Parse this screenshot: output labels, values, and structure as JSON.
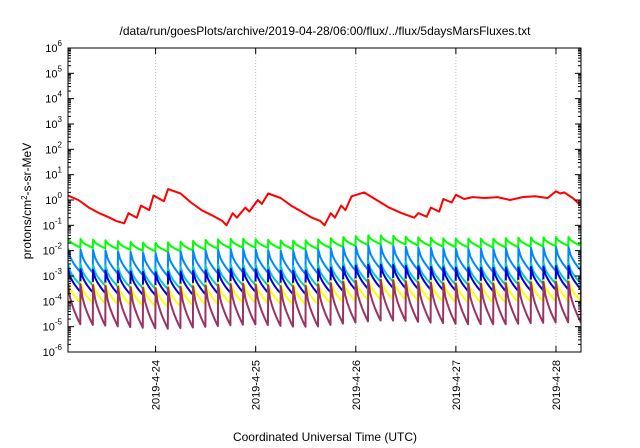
{
  "chart_data": {
    "type": "line",
    "title": "/data/run/goesPlots/archive/2019-04-28/06:00/flux/../flux/5daysMarsFluxes.txt",
    "xlabel": "Coordinated Universal Time (UTC)",
    "ylabel": {
      "before": "protons/cm",
      "sup": "2",
      "after": "-s-sr-MeV"
    },
    "y_scale": "log",
    "ylim": [
      1e-06,
      1000000.0
    ],
    "y_ticks": [
      {
        "base": "10",
        "exp": "-6",
        "value": 1e-06
      },
      {
        "base": "10",
        "exp": "-5",
        "value": 1e-05
      },
      {
        "base": "10",
        "exp": "-4",
        "value": 0.0001
      },
      {
        "base": "10",
        "exp": "-3",
        "value": 0.001
      },
      {
        "base": "10",
        "exp": "-2",
        "value": 0.01
      },
      {
        "base": "10",
        "exp": "-1",
        "value": 0.1
      },
      {
        "base": "10",
        "exp": "0",
        "value": 1
      },
      {
        "base": "10",
        "exp": "1",
        "value": 10
      },
      {
        "base": "10",
        "exp": "2",
        "value": 100
      },
      {
        "base": "10",
        "exp": "3",
        "value": 1000
      },
      {
        "base": "10",
        "exp": "4",
        "value": 10000
      },
      {
        "base": "10",
        "exp": "5",
        "value": 100000
      },
      {
        "base": "10",
        "exp": "6",
        "value": 1000000
      }
    ],
    "xlim": [
      "2019-04-23T03:00",
      "2019-04-28T06:00"
    ],
    "x_ticks": [
      {
        "label": "2019-4-24",
        "value": "2019-04-24T00:00"
      },
      {
        "label": "2019-4-25",
        "value": "2019-04-25T00:00"
      },
      {
        "label": "2019-4-26",
        "value": "2019-04-26T00:00"
      },
      {
        "label": "2019-4-27",
        "value": "2019-04-27T00:00"
      },
      {
        "label": "2019-4-28",
        "value": "2019-04-28T00:00"
      }
    ],
    "grid": {
      "x": true,
      "y": false
    },
    "legend": "none",
    "series": [
      {
        "color": "#ff0000",
        "x": [
          "2019-04-23T03:00",
          "2019-04-23T05:30",
          "2019-04-23T08:00",
          "2019-04-23T10:30",
          "2019-04-23T13:00",
          "2019-04-23T14:30",
          "2019-04-23T16:30",
          "2019-04-23T17:30",
          "2019-04-23T19:30",
          "2019-04-23T20:30",
          "2019-04-23T22:30",
          "2019-04-23T23:30",
          "2019-04-24T02:00",
          "2019-04-24T03:00",
          "2019-04-24T06:00",
          "2019-04-24T08:30",
          "2019-04-24T11:00",
          "2019-04-24T13:30",
          "2019-04-24T16:00",
          "2019-04-24T17:00",
          "2019-04-24T18:30",
          "2019-04-24T19:30",
          "2019-04-24T21:30",
          "2019-04-24T22:30",
          "2019-04-25T00:30",
          "2019-04-25T01:30",
          "2019-04-25T03:00",
          "2019-04-25T06:00",
          "2019-04-25T08:30",
          "2019-04-25T11:00",
          "2019-04-25T13:30",
          "2019-04-25T15:30",
          "2019-04-25T16:30",
          "2019-04-25T18:00",
          "2019-04-25T19:00",
          "2019-04-25T20:30",
          "2019-04-25T21:30",
          "2019-04-25T23:00",
          "2019-04-26T02:00",
          "2019-04-26T05:00",
          "2019-04-26T08:00",
          "2019-04-26T11:00",
          "2019-04-26T14:00",
          "2019-04-26T15:00",
          "2019-04-26T17:00",
          "2019-04-26T18:00",
          "2019-04-26T20:00",
          "2019-04-26T21:00",
          "2019-04-26T23:00",
          "2019-04-27T00:00",
          "2019-04-27T02:00",
          "2019-04-27T04:00",
          "2019-04-27T07:00",
          "2019-04-27T10:00",
          "2019-04-27T13:00",
          "2019-04-27T16:00",
          "2019-04-27T19:00",
          "2019-04-27T22:00",
          "2019-04-28T00:00",
          "2019-04-28T01:00",
          "2019-04-28T02:00",
          "2019-04-28T04:00",
          "2019-04-28T06:00"
        ],
        "values": [
          1.5,
          1.0,
          0.5,
          0.3,
          0.2,
          0.15,
          0.12,
          0.3,
          0.2,
          0.6,
          0.4,
          1.5,
          0.9,
          2.7,
          1.8,
          0.8,
          0.4,
          0.25,
          0.15,
          0.1,
          0.3,
          0.2,
          0.5,
          0.35,
          1.0,
          0.7,
          1.8,
          1.2,
          0.6,
          0.35,
          0.2,
          0.15,
          0.1,
          0.3,
          0.2,
          0.6,
          0.4,
          1.4,
          2.0,
          1.0,
          0.5,
          0.3,
          0.2,
          0.3,
          0.22,
          0.5,
          0.35,
          1.1,
          0.8,
          1.6,
          1.1,
          1.3,
          1.2,
          1.3,
          1.0,
          1.3,
          1.4,
          1.2,
          2.2,
          1.8,
          2.0,
          1.2,
          0.6
        ]
      },
      {
        "color": "#00ff00",
        "base_values": [
          0.03,
          0.028,
          0.025,
          0.022,
          0.02,
          0.022,
          0.025,
          0.028,
          0.03,
          0.028,
          0.025,
          0.025,
          0.03,
          0.035,
          0.04,
          0.04,
          0.035,
          0.032,
          0.03,
          0.03,
          0.03,
          0.032,
          0.033,
          0.035,
          0.035
        ],
        "min_ratio": 0.45
      },
      {
        "color": "#0088ff",
        "base_values": [
          0.012,
          0.011,
          0.01,
          0.009,
          0.008,
          0.009,
          0.01,
          0.011,
          0.012,
          0.011,
          0.01,
          0.01,
          0.012,
          0.014,
          0.016,
          0.016,
          0.014,
          0.013,
          0.012,
          0.012,
          0.012,
          0.013,
          0.013,
          0.014,
          0.014
        ],
        "min_ratio": 0.12
      },
      {
        "color": "#00cccc",
        "base_values": [
          0.003,
          0.0028,
          0.0025,
          0.0022,
          0.002,
          0.0022,
          0.0025,
          0.0028,
          0.003,
          0.0028,
          0.0025,
          0.0025,
          0.003,
          0.0035,
          0.004,
          0.004,
          0.0035,
          0.0032,
          0.003,
          0.003,
          0.003,
          0.0032,
          0.0033,
          0.0035,
          0.0035
        ],
        "min_ratio": 0.15
      },
      {
        "color": "#0000dd",
        "base_values": [
          0.002,
          0.0018,
          0.0016,
          0.0015,
          0.0014,
          0.0015,
          0.0016,
          0.0018,
          0.002,
          0.0018,
          0.0016,
          0.0016,
          0.002,
          0.0024,
          0.0028,
          0.0028,
          0.0025,
          0.0023,
          0.0021,
          0.0021,
          0.0021,
          0.0022,
          0.0023,
          0.0025,
          0.0025
        ],
        "min_ratio": 0.12
      },
      {
        "color": "#ffff00",
        "base_values": [
          0.0006,
          0.00055,
          0.0005,
          0.00045,
          0.0004,
          0.00045,
          0.0005,
          0.00055,
          0.0006,
          0.00055,
          0.0005,
          0.0005,
          0.0006,
          0.0007,
          0.0008,
          0.0008,
          0.0007,
          0.00065,
          0.0006,
          0.0006,
          0.0006,
          0.00065,
          0.00068,
          0.0007,
          0.0007
        ],
        "min_ratio": 0.15
      },
      {
        "color": "#993366",
        "base_values": [
          0.0005,
          0.00045,
          0.0004,
          0.00036,
          0.00033,
          0.00036,
          0.0004,
          0.00045,
          0.0005,
          0.00045,
          0.0004,
          0.0004,
          0.0005,
          0.0006,
          0.0007,
          0.0007,
          0.0006,
          0.00055,
          0.0005,
          0.0005,
          0.0005,
          0.00055,
          0.00058,
          0.0006,
          0.0006
        ],
        "min_ratio": 0.025
      }
    ]
  }
}
